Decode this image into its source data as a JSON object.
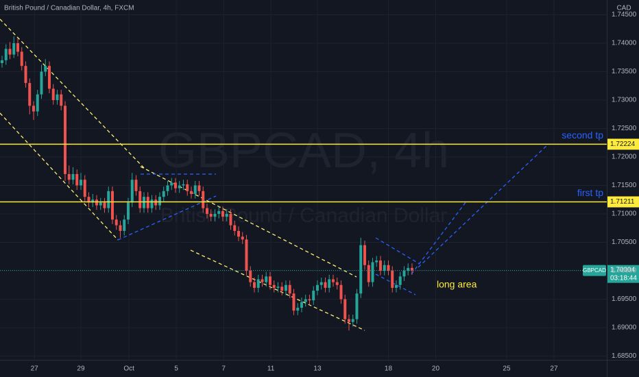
{
  "chart_data": {
    "type": "candlestick",
    "title": "British Pound / Canadian Dollar, 4h, FXCM",
    "watermark": "GBPCAD, 4h",
    "watermark_subtitle": "British Pound / Canadian Dollar",
    "currency": "CAD",
    "up_color": "#26a69a",
    "down_color": "#ef5350",
    "open": [
      1.7365,
      1.737,
      1.739,
      1.738,
      1.74,
      1.7385,
      1.736,
      1.733,
      1.729,
      1.728,
      1.731,
      1.735,
      1.736,
      1.732,
      1.73,
      1.731,
      1.729,
      1.717,
      1.716,
      1.717,
      1.715,
      1.716,
      1.713,
      1.712,
      1.7125,
      1.7115,
      1.712,
      1.711,
      1.714,
      1.709,
      1.708,
      1.707,
      1.709,
      1.712,
      1.716,
      1.714,
      1.711,
      1.713,
      1.711,
      1.7125,
      1.7115,
      1.713,
      1.714,
      1.715,
      1.7155,
      1.7145,
      1.715,
      1.7152,
      1.714,
      1.7135,
      1.715,
      1.714,
      1.711,
      1.71,
      1.7095,
      1.71,
      1.7105,
      1.7095,
      1.71,
      1.708,
      1.707,
      1.706,
      1.7055,
      1.7,
      1.698,
      1.697,
      1.6985,
      1.698,
      1.699,
      1.6975,
      1.697,
      1.6972,
      1.6965,
      1.6975,
      1.696,
      1.693,
      1.6935,
      1.6945,
      1.695,
      1.6948,
      1.6965,
      1.6975,
      1.698,
      1.697,
      1.6985,
      1.698,
      1.6975,
      1.695,
      1.6915,
      1.691,
      1.6915,
      1.696,
      1.7045,
      1.701,
      1.698,
      1.7015,
      1.7018,
      1.7,
      1.701,
      1.7,
      1.697,
      1.6975,
      1.699,
      1.7,
      1.7005
    ],
    "high": [
      1.7378,
      1.7398,
      1.7402,
      1.7412,
      1.7408,
      1.7393,
      1.7368,
      1.7338,
      1.7298,
      1.7318,
      1.7362,
      1.7372,
      1.7368,
      1.7328,
      1.7318,
      1.7318,
      1.7298,
      1.7185,
      1.7182,
      1.7178,
      1.7172,
      1.7168,
      1.7138,
      1.7135,
      1.7133,
      1.7128,
      1.7128,
      1.7148,
      1.7148,
      1.7098,
      1.7088,
      1.7098,
      1.7128,
      1.7172,
      1.7168,
      1.7148,
      1.7138,
      1.7138,
      1.7133,
      1.7133,
      1.7138,
      1.7148,
      1.7158,
      1.7163,
      1.7163,
      1.7158,
      1.716,
      1.716,
      1.7148,
      1.7158,
      1.7158,
      1.7148,
      1.7118,
      1.7108,
      1.7108,
      1.7113,
      1.7113,
      1.7108,
      1.7108,
      1.7088,
      1.7078,
      1.7068,
      1.7063,
      1.7008,
      1.6988,
      1.6993,
      1.6993,
      1.6998,
      1.6998,
      1.6983,
      1.698,
      1.698,
      1.6983,
      1.6983,
      1.6968,
      1.6943,
      1.6953,
      1.6958,
      1.6958,
      1.6973,
      1.6983,
      1.6988,
      1.6988,
      1.6993,
      1.6993,
      1.6988,
      1.6983,
      1.6958,
      1.6923,
      1.6923,
      1.6968,
      1.7058,
      1.7053,
      1.7018,
      1.7023,
      1.7026,
      1.7026,
      1.7018,
      1.7018,
      1.7008,
      1.6983,
      1.6998,
      1.7008,
      1.7013,
      1.7013
    ],
    "low": [
      1.7357,
      1.7362,
      1.7372,
      1.7374,
      1.7377,
      1.7352,
      1.7322,
      1.7275,
      1.7265,
      1.7272,
      1.7302,
      1.7342,
      1.7312,
      1.7292,
      1.7292,
      1.7282,
      1.7158,
      1.7152,
      1.7152,
      1.7142,
      1.7142,
      1.7122,
      1.7112,
      1.7112,
      1.7107,
      1.7107,
      1.7102,
      1.7102,
      1.7082,
      1.7072,
      1.7058,
      1.7062,
      1.7082,
      1.7112,
      1.7132,
      1.7102,
      1.7102,
      1.7102,
      1.7102,
      1.7107,
      1.7107,
      1.7122,
      1.7132,
      1.7142,
      1.7137,
      1.7137,
      1.7142,
      1.7132,
      1.7127,
      1.7127,
      1.7132,
      1.7102,
      1.7092,
      1.7087,
      1.7087,
      1.7092,
      1.7087,
      1.7087,
      1.7072,
      1.7062,
      1.7052,
      1.7047,
      1.6992,
      1.6972,
      1.6962,
      1.6962,
      1.6972,
      1.6972,
      1.6967,
      1.6962,
      1.6962,
      1.6957,
      1.6957,
      1.6952,
      1.6922,
      1.6922,
      1.6927,
      1.6937,
      1.694,
      1.694,
      1.6957,
      1.6967,
      1.6962,
      1.6962,
      1.6972,
      1.6967,
      1.6942,
      1.6907,
      1.6895,
      1.6902,
      1.6907,
      1.6952,
      1.7002,
      1.6972,
      1.6972,
      1.7007,
      1.6992,
      1.6992,
      1.6992,
      1.6962,
      1.6962,
      1.6967,
      1.6982,
      1.6992,
      1.6993
    ],
    "close": [
      1.737,
      1.739,
      1.738,
      1.74,
      1.7385,
      1.736,
      1.733,
      1.729,
      1.728,
      1.731,
      1.735,
      1.736,
      1.732,
      1.73,
      1.731,
      1.729,
      1.717,
      1.716,
      1.717,
      1.715,
      1.716,
      1.713,
      1.712,
      1.7125,
      1.7115,
      1.712,
      1.711,
      1.714,
      1.709,
      1.708,
      1.707,
      1.709,
      1.712,
      1.716,
      1.714,
      1.711,
      1.713,
      1.711,
      1.7125,
      1.7115,
      1.713,
      1.714,
      1.715,
      1.7155,
      1.7145,
      1.715,
      1.7152,
      1.714,
      1.7135,
      1.715,
      1.714,
      1.711,
      1.71,
      1.7095,
      1.71,
      1.7105,
      1.7095,
      1.71,
      1.708,
      1.707,
      1.706,
      1.7055,
      1.7,
      1.698,
      1.697,
      1.6985,
      1.698,
      1.699,
      1.6975,
      1.697,
      1.6972,
      1.6965,
      1.6975,
      1.696,
      1.693,
      1.6935,
      1.6945,
      1.695,
      1.6948,
      1.6965,
      1.6975,
      1.698,
      1.697,
      1.6985,
      1.698,
      1.6975,
      1.695,
      1.6915,
      1.691,
      1.6915,
      1.696,
      1.7045,
      1.701,
      1.698,
      1.7015,
      1.7018,
      1.7,
      1.701,
      1.7,
      1.697,
      1.6975,
      1.699,
      1.7,
      1.7005,
      1.70004
    ],
    "xlim": [
      -0.52,
      153.4
    ],
    "xticks": [
      {
        "value": 8.2,
        "label": "27"
      },
      {
        "value": 20,
        "label": "29"
      },
      {
        "value": 32.2,
        "label": "Oct"
      },
      {
        "value": 44.2,
        "label": "5"
      },
      {
        "value": 56.2,
        "label": "7"
      },
      {
        "value": 68.2,
        "label": "11"
      },
      {
        "value": 80,
        "label": "13"
      },
      {
        "value": 98,
        "label": "18"
      },
      {
        "value": 110,
        "label": "20"
      },
      {
        "value": 128,
        "label": "25"
      },
      {
        "value": 140,
        "label": "27"
      }
    ],
    "ylim": [
      1.68434,
      1.74759
    ],
    "yticks": [
      {
        "value": 1.685,
        "label": "1.68500"
      },
      {
        "value": 1.69,
        "label": "1.69000"
      },
      {
        "value": 1.695,
        "label": "1.69500"
      },
      {
        "value": 1.7,
        "label": "1.70000"
      },
      {
        "value": 1.705,
        "label": "1.70500"
      },
      {
        "value": 1.71,
        "label": "1.71000"
      },
      {
        "value": 1.715,
        "label": "1.71500"
      },
      {
        "value": 1.72,
        "label": "1.72000"
      },
      {
        "value": 1.725,
        "label": "1.72500"
      },
      {
        "value": 1.73,
        "label": "1.73000"
      },
      {
        "value": 1.735,
        "label": "1.73500"
      },
      {
        "value": 1.74,
        "label": "1.74000"
      },
      {
        "value": 1.745,
        "label": "1.74500"
      }
    ],
    "price_lines": [
      {
        "value": 1.72224,
        "label": "1.72224",
        "text": "second tp",
        "color": "#ffeb3b"
      },
      {
        "value": 1.71211,
        "label": "1.71211",
        "text": "first tp",
        "color": "#ffeb3b"
      }
    ],
    "last_price": {
      "value": 1.70004,
      "label": "1.70004",
      "symbol": "GBPCAD",
      "countdown": "03:18:44"
    },
    "annotation": "long area"
  }
}
